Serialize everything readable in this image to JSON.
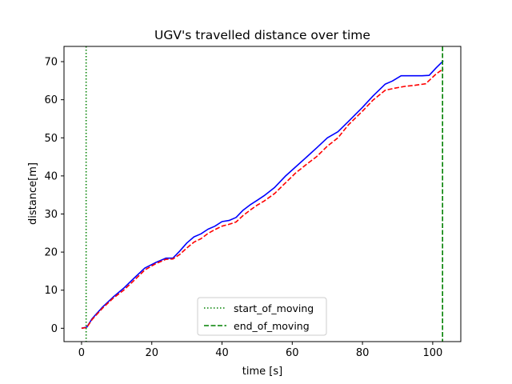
{
  "chart_data": {
    "type": "line",
    "title": "UGV's travelled distance over time",
    "xlabel": "time [s]",
    "ylabel": "distance[m]",
    "xlim": [
      -5,
      108
    ],
    "ylim": [
      -3.5,
      74
    ],
    "xticks": [
      0,
      20,
      40,
      60,
      80,
      100
    ],
    "yticks": [
      0,
      10,
      20,
      30,
      40,
      50,
      60,
      70
    ],
    "grid": false,
    "legend_position": "bottom-center",
    "series": [
      {
        "color": "#0000ff",
        "style": "solid",
        "x": [
          0,
          1.5,
          3,
          6,
          9,
          12,
          15,
          18,
          21,
          24,
          26,
          28,
          30,
          32,
          34,
          36,
          38,
          40,
          42,
          44,
          46,
          48,
          50,
          52,
          55,
          58,
          61,
          64,
          67,
          70,
          73,
          76,
          80,
          83,
          86.5,
          88.5,
          91,
          94,
          97,
          99,
          101,
          103
        ],
        "y": [
          0,
          0.3,
          2.5,
          5.6,
          8.2,
          10.5,
          13.2,
          15.8,
          17.2,
          18.4,
          18.4,
          20.3,
          22.4,
          24.0,
          24.8,
          26.0,
          26.8,
          28.0,
          28.3,
          29.1,
          31.0,
          32.4,
          33.6,
          34.8,
          37.0,
          39.9,
          42.4,
          44.9,
          47.4,
          50.0,
          51.6,
          54.3,
          58.0,
          61.0,
          64.1,
          64.9,
          66.3,
          66.3,
          66.3,
          66.4,
          68.4,
          70.2
        ]
      },
      {
        "color": "#ff0000",
        "style": "dashed",
        "x": [
          0,
          1.5,
          3,
          6,
          9,
          12,
          15,
          18,
          21,
          24,
          26,
          28,
          30,
          32,
          34,
          36,
          38,
          40,
          42,
          44,
          46,
          48,
          50,
          52,
          55,
          58,
          61,
          64,
          67,
          70,
          73,
          76,
          80,
          83,
          86.5,
          89,
          92,
          95,
          98,
          101,
          103
        ],
        "y": [
          0,
          0.2,
          2.3,
          5.3,
          7.9,
          10.0,
          12.6,
          15.3,
          16.9,
          18.1,
          18.2,
          19.4,
          21.1,
          22.6,
          23.5,
          24.9,
          25.9,
          26.8,
          27.3,
          27.9,
          29.6,
          31.0,
          32.3,
          33.4,
          35.4,
          38.1,
          40.8,
          43.0,
          45.1,
          47.8,
          50.0,
          53.4,
          57.0,
          59.9,
          62.5,
          63.0,
          63.5,
          63.8,
          64.2,
          66.8,
          68.1
        ]
      }
    ],
    "vlines": [
      {
        "x": 1.3,
        "label": "start_of_moving",
        "color": "#008000",
        "style": "dotted"
      },
      {
        "x": 102.8,
        "label": "end_of_moving",
        "color": "#008000",
        "style": "dashed"
      }
    ]
  }
}
